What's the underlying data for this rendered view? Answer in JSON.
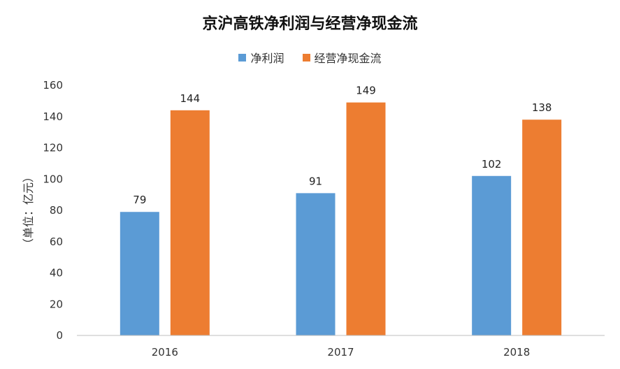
{
  "chart_data": {
    "type": "bar",
    "title": "京沪高铁净利润与经营净现金流",
    "xlabel": "",
    "ylabel": "（单位：亿元）",
    "categories": [
      "2016",
      "2017",
      "2018"
    ],
    "series": [
      {
        "name": "净利润",
        "values": [
          79,
          91,
          102
        ],
        "color": "#5B9BD5"
      },
      {
        "name": "经营净现金流",
        "values": [
          144,
          149,
          138
        ],
        "color": "#ED7D31"
      }
    ],
    "ylim": [
      0,
      160
    ],
    "yticks": [
      0,
      20,
      40,
      60,
      80,
      100,
      120,
      140,
      160
    ],
    "grid": false,
    "legend_position": "top"
  }
}
